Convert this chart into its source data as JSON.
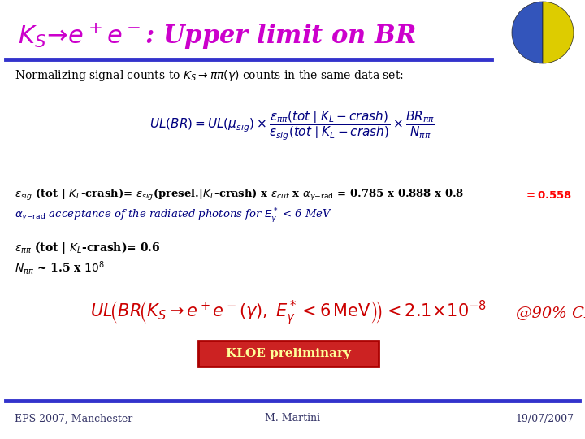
{
  "bg_color": "#FFFFFF",
  "title_color": "#CC00CC",
  "title_fontsize": 22,
  "blue_line_color": "#3333CC",
  "footer_left": "EPS 2007, Manchester",
  "footer_center": "M. Martini",
  "footer_right": "19/07/2007",
  "footer_color": "#333366",
  "footer_fontsize": 9,
  "kloe_label": "KLOE preliminary",
  "kloe_bg": "#CC2222",
  "kloe_fg": "#FFFF99",
  "kloe_edge": "#AA0000"
}
